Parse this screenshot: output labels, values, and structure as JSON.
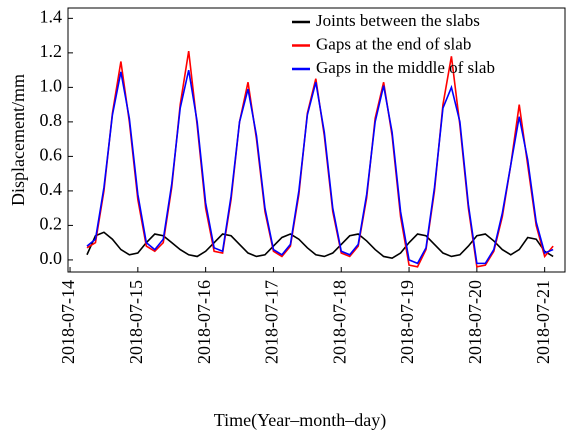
{
  "chart_data": {
    "type": "line",
    "xlabel": "Time(Year–month–day)",
    "ylabel": "Displacement/mm",
    "xlim": [
      13.97,
      21.3
    ],
    "xticks": [
      {
        "value": 14,
        "label": "2018-07-14"
      },
      {
        "value": 15,
        "label": "2018-07-15"
      },
      {
        "value": 16,
        "label": "2018-07-16"
      },
      {
        "value": 17,
        "label": "2018-07-17"
      },
      {
        "value": 18,
        "label": "2018-07-18"
      },
      {
        "value": 19,
        "label": "2018-07-19"
      },
      {
        "value": 20,
        "label": "2018-07-20"
      },
      {
        "value": 21,
        "label": "2018-07-21"
      }
    ],
    "ylim": [
      -0.07,
      1.46
    ],
    "yticks": [
      {
        "value": 0,
        "label": "0.0"
      },
      0.2,
      0.4,
      0.6,
      0.8,
      {
        "value": 1,
        "label": "1.0"
      },
      1.2,
      1.4
    ],
    "legend": "upper right",
    "x": [
      14.25,
      14.375,
      14.5,
      14.625,
      14.75,
      14.875,
      15,
      15.125,
      15.25,
      15.375,
      15.5,
      15.625,
      15.75,
      15.875,
      16,
      16.125,
      16.25,
      16.375,
      16.5,
      16.625,
      16.75,
      16.875,
      17,
      17.125,
      17.25,
      17.375,
      17.5,
      17.625,
      17.75,
      17.875,
      18,
      18.125,
      18.25,
      18.375,
      18.5,
      18.625,
      18.75,
      18.875,
      19,
      19.125,
      19.25,
      19.375,
      19.5,
      19.625,
      19.75,
      19.875,
      20,
      20.125,
      20.25,
      20.375,
      20.5,
      20.625,
      20.75,
      20.875,
      21,
      21.125
    ],
    "series": [
      {
        "name": "Joints between the slabs",
        "color": "#000000",
        "values": [
          0.03,
          0.14,
          0.16,
          0.12,
          0.06,
          0.03,
          0.04,
          0.1,
          0.15,
          0.14,
          0.1,
          0.06,
          0.03,
          0.02,
          0.05,
          0.1,
          0.15,
          0.14,
          0.09,
          0.04,
          0.02,
          0.03,
          0.08,
          0.13,
          0.15,
          0.12,
          0.07,
          0.03,
          0.02,
          0.04,
          0.09,
          0.14,
          0.15,
          0.11,
          0.06,
          0.02,
          0.01,
          0.04,
          0.1,
          0.15,
          0.14,
          0.09,
          0.04,
          0.02,
          0.03,
          0.08,
          0.14,
          0.15,
          0.11,
          0.06,
          0.03,
          0.06,
          0.13,
          0.12,
          0.05,
          0.02
        ]
      },
      {
        "name": "Gaps at the end of slab",
        "color": "#ff0000",
        "values": [
          0.07,
          0.1,
          0.4,
          0.85,
          1.15,
          0.8,
          0.35,
          0.08,
          0.05,
          0.1,
          0.42,
          0.9,
          1.21,
          0.78,
          0.3,
          0.05,
          0.04,
          0.35,
          0.8,
          1.03,
          0.7,
          0.28,
          0.05,
          0.02,
          0.08,
          0.38,
          0.85,
          1.05,
          0.72,
          0.28,
          0.04,
          0.02,
          0.08,
          0.36,
          0.82,
          1.03,
          0.72,
          0.25,
          -0.03,
          -0.04,
          0.06,
          0.4,
          0.9,
          1.18,
          0.78,
          0.3,
          -0.04,
          -0.03,
          0.05,
          0.25,
          0.55,
          0.9,
          0.55,
          0.2,
          0.02,
          0.08
        ]
      },
      {
        "name": "Gaps in the middle of slab",
        "color": "#0000ff",
        "values": [
          0.08,
          0.12,
          0.42,
          0.84,
          1.09,
          0.82,
          0.38,
          0.1,
          0.06,
          0.12,
          0.44,
          0.88,
          1.1,
          0.8,
          0.33,
          0.07,
          0.05,
          0.37,
          0.8,
          0.99,
          0.72,
          0.3,
          0.06,
          0.03,
          0.09,
          0.4,
          0.84,
          1.03,
          0.74,
          0.3,
          0.05,
          0.03,
          0.09,
          0.38,
          0.8,
          1.01,
          0.74,
          0.28,
          0.0,
          -0.02,
          0.07,
          0.42,
          0.88,
          1.0,
          0.8,
          0.32,
          -0.02,
          -0.02,
          0.06,
          0.27,
          0.55,
          0.83,
          0.58,
          0.22,
          0.04,
          0.06
        ]
      }
    ]
  }
}
